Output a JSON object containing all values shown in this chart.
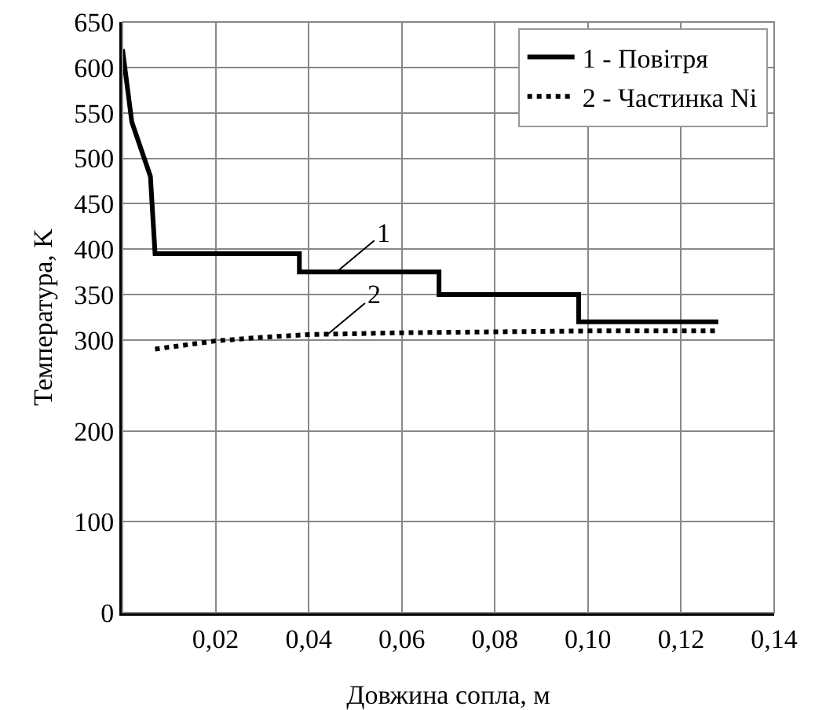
{
  "chart_data": {
    "type": "line",
    "xlabel": "Довжина сопла, м",
    "ylabel": "Температура, K",
    "xlim": [
      0,
      0.14
    ],
    "xticks": [
      {
        "value": 0,
        "label": null
      },
      {
        "value": 0.02,
        "label": "0,02"
      },
      {
        "value": 0.04,
        "label": "0,04"
      },
      {
        "value": 0.06,
        "label": "0,06"
      },
      {
        "value": 0.08,
        "label": "0,08"
      },
      {
        "value": 0.1,
        "label": "0,10"
      },
      {
        "value": 0.12,
        "label": "0,12"
      },
      {
        "value": 0.14,
        "label": "0,14"
      }
    ],
    "ylim": [
      0,
      650
    ],
    "yticks": [
      0,
      100,
      200,
      300,
      350,
      400,
      450,
      500,
      550,
      600,
      650
    ],
    "grid": true,
    "legend": "top right",
    "marker": "none",
    "series": [
      {
        "name": "1 - Повітря",
        "color": "#000000",
        "line_style": "solid",
        "x": [
          0,
          0.002,
          0.006,
          0.007,
          0.038,
          0.038,
          0.068,
          0.068,
          0.098,
          0.098,
          0.128
        ],
        "values": [
          620,
          540,
          480,
          395,
          395,
          375,
          375,
          350,
          350,
          320,
          320
        ]
      },
      {
        "name": "2 - Частинка Ni",
        "color": "#000000",
        "line_style": "dotted",
        "x": [
          0.007,
          0.02,
          0.03,
          0.04,
          0.06,
          0.08,
          0.1,
          0.128
        ],
        "values": [
          290,
          299,
          303,
          306,
          308,
          309,
          310,
          310
        ]
      }
    ],
    "annotations": [
      {
        "text": "1",
        "x": 0.046,
        "y": 375
      },
      {
        "text": "2",
        "x": 0.044,
        "y": 306
      }
    ]
  }
}
